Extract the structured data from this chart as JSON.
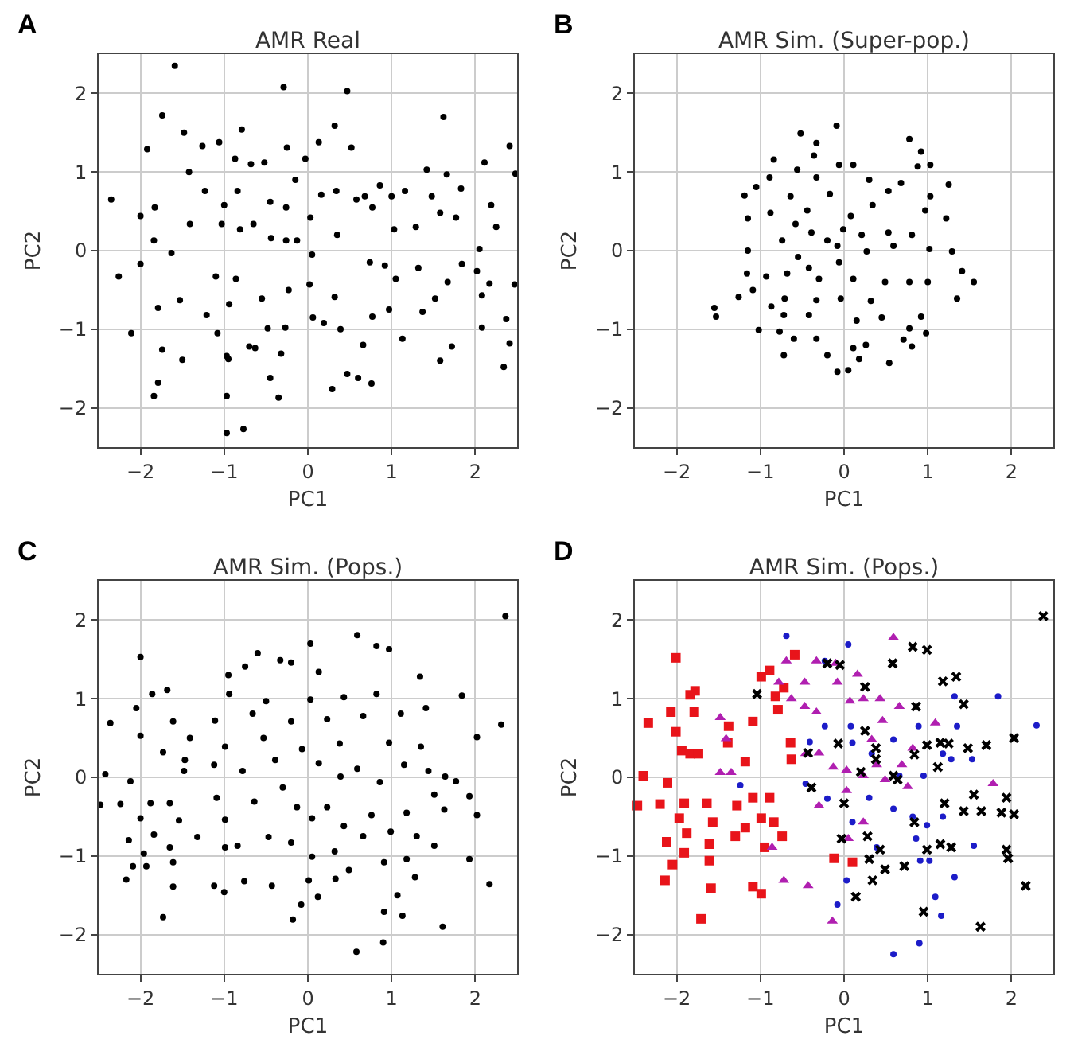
{
  "chart_data": [
    {
      "type": "scatter",
      "title": "AMR Real",
      "xlabel": "PC1",
      "ylabel": "PC2",
      "annotations": [
        "A"
      ],
      "xlim": [
        -2.5,
        2.5
      ],
      "ylim": [
        -2.5,
        2.5
      ],
      "xticks": [
        -2,
        -1,
        0,
        1,
        2
      ],
      "yticks": [
        -2,
        -1,
        0,
        1,
        2
      ],
      "grid": true,
      "marker": "circle",
      "series": [
        {
          "color": "#000000",
          "x": [
            -1.59,
            -0.29,
            0.47,
            -1.74,
            1.62,
            -2.35,
            -2.26,
            -2.11,
            -1.92,
            -1.48,
            -2.0,
            -2.0,
            -1.83,
            -1.84,
            -1.79,
            -1.74,
            -1.79,
            -1.84,
            -1.5,
            -1.63,
            -1.53,
            -1.41,
            -1.42,
            -1.26,
            -1.23,
            -1.21,
            -1.1,
            -1.06,
            -1.0,
            -1.03,
            -1.08,
            -0.97,
            -0.95,
            -0.97,
            -0.77,
            -0.97,
            -0.87,
            -0.84,
            -0.81,
            -0.86,
            -0.94,
            -0.79,
            -0.68,
            -0.65,
            -0.7,
            -0.63,
            -0.55,
            -0.52,
            -0.45,
            -0.44,
            -0.48,
            -0.45,
            -0.35,
            -0.32,
            -0.27,
            -0.26,
            -0.25,
            -0.26,
            -0.23,
            -0.15,
            -0.13,
            -0.03,
            0.03,
            0.05,
            0.02,
            0.06,
            0.13,
            0.16,
            0.19,
            0.29,
            0.32,
            0.34,
            0.35,
            0.32,
            0.39,
            0.52,
            0.47,
            0.6,
            0.66,
            0.58,
            0.68,
            0.74,
            0.77,
            0.77,
            0.76,
            0.86,
            0.92,
            0.97,
            1.0,
            1.03,
            1.05,
            1.13,
            1.16,
            1.29,
            1.32,
            1.37,
            1.42,
            1.48,
            1.52,
            1.58,
            1.58,
            1.66,
            1.67,
            1.72,
            1.77,
            1.83,
            1.84,
            2.02,
            2.05,
            2.08,
            2.08,
            2.11,
            2.19,
            2.25,
            2.17,
            2.34,
            2.37,
            2.41,
            2.41,
            2.48,
            2.47
          ],
          "values": [
            2.35,
            2.08,
            2.03,
            1.72,
            1.7,
            0.65,
            -0.33,
            -1.05,
            1.29,
            1.5,
            0.44,
            -0.17,
            0.55,
            0.13,
            -0.73,
            -1.26,
            -1.68,
            -1.85,
            -1.39,
            -0.03,
            -0.63,
            0.34,
            1.0,
            1.33,
            0.76,
            -0.82,
            -0.33,
            1.38,
            0.58,
            0.34,
            -1.05,
            -1.34,
            -1.38,
            -2.32,
            -2.27,
            -1.85,
            1.17,
            0.76,
            0.27,
            -0.36,
            -0.68,
            1.54,
            1.1,
            0.34,
            -1.22,
            -1.24,
            -0.61,
            1.12,
            0.62,
            0.16,
            -0.99,
            -1.62,
            -1.87,
            -1.31,
            -0.98,
            0.55,
            1.31,
            0.13,
            -0.5,
            0.9,
            0.13,
            1.17,
            0.42,
            -0.05,
            -0.43,
            -0.85,
            1.38,
            0.71,
            -0.92,
            -1.76,
            1.59,
            0.76,
            0.2,
            -0.59,
            -1.0,
            1.31,
            -1.57,
            -1.62,
            -1.2,
            0.65,
            0.69,
            -0.15,
            0.55,
            -0.84,
            -1.69,
            0.83,
            -0.19,
            -0.75,
            0.69,
            0.27,
            -0.36,
            -1.12,
            0.76,
            0.3,
            -0.22,
            -0.78,
            1.03,
            0.69,
            -0.61,
            -1.4,
            0.48,
            0.97,
            -0.4,
            -1.22,
            0.42,
            0.79,
            -0.17,
            -0.26,
            0.02,
            -0.57,
            -0.98,
            1.12,
            0.58,
            0.3,
            -0.42,
            -1.48,
            -0.87,
            -1.18,
            1.33,
            0.98,
            -0.43
          ]
        }
      ]
    },
    {
      "type": "scatter",
      "title": "AMR Sim. (Super-pop.)",
      "xlabel": "PC1",
      "ylabel": "PC2",
      "annotations": [
        "B"
      ],
      "xlim": [
        -2.5,
        2.5
      ],
      "ylim": [
        -2.5,
        2.5
      ],
      "xticks": [
        -2,
        -1,
        0,
        1,
        2
      ],
      "yticks": [
        -2,
        -1,
        0,
        1,
        2
      ],
      "grid": true,
      "marker": "circle",
      "series": [
        {
          "color": "#000000",
          "x": [
            -0.09,
            -0.52,
            -0.33,
            -0.36,
            0.78,
            0.92,
            -0.84,
            -0.56,
            -0.06,
            0.11,
            1.03,
            0.88,
            -1.05,
            -0.89,
            -1.19,
            1.25,
            0.68,
            -0.33,
            0.3,
            -0.17,
            0.53,
            -0.88,
            -1.15,
            -0.64,
            -0.44,
            0.08,
            0.34,
            1.03,
            1.22,
            0.97,
            -0.58,
            -0.74,
            -0.39,
            -0.2,
            -0.01,
            0.21,
            0.53,
            0.81,
            -1.15,
            -0.55,
            -0.08,
            0.27,
            0.59,
            1.02,
            1.29,
            1.41,
            1.55,
            -1.16,
            -0.93,
            -0.68,
            -0.42,
            -0.3,
            -0.06,
            0.11,
            0.49,
            0.78,
            1.0,
            -1.26,
            -1.09,
            -0.71,
            -0.33,
            -0.04,
            0.32,
            1.35,
            -1.55,
            -1.53,
            -0.87,
            -0.72,
            -0.42,
            0.15,
            0.45,
            0.92,
            -1.02,
            -0.77,
            -0.6,
            -0.33,
            0.78,
            0.98,
            -0.72,
            -0.2,
            0.11,
            0.26,
            -0.08,
            0.05,
            0.54,
            0.81,
            0.71,
            0.18
          ],
          "values": [
            1.59,
            1.49,
            1.37,
            1.21,
            1.42,
            1.26,
            1.16,
            1.03,
            1.09,
            1.09,
            1.09,
            1.07,
            0.81,
            0.93,
            0.7,
            0.84,
            0.86,
            0.93,
            0.9,
            0.72,
            0.76,
            0.48,
            0.41,
            0.69,
            0.51,
            0.44,
            0.58,
            0.69,
            0.41,
            0.51,
            0.34,
            0.13,
            0.23,
            0.13,
            0.27,
            0.2,
            0.23,
            0.2,
            0.0,
            -0.08,
            0.06,
            -0.01,
            0.06,
            0.02,
            -0.01,
            -0.26,
            -0.4,
            -0.29,
            -0.33,
            -0.29,
            -0.22,
            -0.36,
            -0.15,
            -0.36,
            -0.4,
            -0.4,
            -0.4,
            -0.59,
            -0.5,
            -0.61,
            -0.63,
            -0.61,
            -0.64,
            -0.61,
            -0.73,
            -0.84,
            -0.71,
            -0.82,
            -0.82,
            -0.89,
            -0.85,
            -0.84,
            -1.01,
            -1.03,
            -1.12,
            -1.12,
            -0.99,
            -1.05,
            -1.33,
            -1.33,
            -1.24,
            -1.2,
            -1.54,
            -1.52,
            -1.43,
            -1.22,
            -1.13,
            -1.38
          ]
        }
      ]
    },
    {
      "type": "scatter",
      "title": "AMR Sim. (Pops.)",
      "xlabel": "PC1",
      "ylabel": "PC2",
      "annotations": [
        "C"
      ],
      "xlim": [
        -2.5,
        2.5
      ],
      "ylim": [
        -2.5,
        2.5
      ],
      "xticks": [
        -2,
        -1,
        0,
        1,
        2
      ],
      "yticks": [
        -2,
        -1,
        0,
        1,
        2
      ],
      "grid": true,
      "marker": "circle",
      "series": [
        {
          "color": "#000000",
          "x": [
            2.36,
            0.59,
            0.03,
            0.97,
            -2.0,
            -0.6,
            0.82,
            -0.33,
            -0.95,
            -0.75,
            -0.2,
            0.13,
            1.34,
            -1.68,
            -1.86,
            -0.94,
            -0.5,
            0.03,
            0.43,
            0.82,
            1.84,
            -2.36,
            -2.05,
            -1.61,
            -1.11,
            -0.66,
            -0.2,
            0.23,
            0.66,
            1.11,
            1.41,
            2.31,
            -2.0,
            -1.41,
            -0.99,
            -0.53,
            -0.07,
            0.38,
            0.97,
            1.35,
            2.02,
            -1.73,
            -1.47,
            -1.12,
            -0.78,
            -0.39,
            0.13,
            0.59,
            1.15,
            1.64,
            -2.42,
            -2.12,
            -1.48,
            -0.3,
            0.39,
            0.86,
            1.44,
            1.77,
            -2.48,
            -2.24,
            -1.88,
            -1.65,
            -1.09,
            -0.64,
            -0.13,
            0.23,
            0.76,
            1.18,
            1.51,
            1.93,
            2.02,
            -2.0,
            -1.54,
            -0.99,
            0.05,
            0.43,
            0.99,
            1.63,
            -2.14,
            -1.84,
            -1.32,
            -0.84,
            -0.47,
            -0.2,
            0.66,
            1.3,
            -1.96,
            -1.65,
            -0.99,
            0.05,
            0.32,
            0.91,
            1.18,
            1.93,
            1.51,
            -2.09,
            -1.93,
            -1.61,
            -2.17,
            -1.61,
            -1.12,
            -1.0,
            -0.76,
            -0.43,
            0.01,
            0.12,
            0.33,
            0.49,
            1.28,
            1.07,
            2.17,
            -0.08,
            -0.18,
            0.91,
            1.13,
            1.61,
            0.9,
            0.58,
            -1.73
          ],
          "values": [
            2.05,
            1.81,
            1.7,
            1.63,
            1.53,
            1.58,
            1.67,
            1.49,
            1.3,
            1.41,
            1.46,
            1.34,
            1.28,
            1.11,
            1.06,
            1.06,
            0.97,
            0.99,
            1.02,
            1.06,
            1.04,
            0.69,
            0.88,
            0.71,
            0.72,
            0.81,
            0.71,
            0.74,
            0.78,
            0.81,
            0.88,
            0.67,
            0.53,
            0.5,
            0.39,
            0.5,
            0.36,
            0.43,
            0.44,
            0.39,
            0.51,
            0.32,
            0.22,
            0.16,
            0.08,
            0.22,
            0.18,
            0.11,
            0.16,
            0.01,
            0.04,
            -0.05,
            0.08,
            -0.13,
            0.01,
            -0.06,
            0.08,
            -0.05,
            -0.35,
            -0.34,
            -0.33,
            -0.33,
            -0.26,
            -0.31,
            -0.38,
            -0.38,
            -0.48,
            -0.45,
            -0.22,
            -0.24,
            -0.48,
            -0.52,
            -0.55,
            -0.54,
            -0.52,
            -0.62,
            -0.69,
            -0.41,
            -0.8,
            -0.73,
            -0.76,
            -0.87,
            -0.76,
            -0.83,
            -0.75,
            -0.75,
            -0.97,
            -0.89,
            -0.89,
            -1.01,
            -0.94,
            -1.08,
            -1.04,
            -1.04,
            -0.87,
            -1.13,
            -1.13,
            -1.08,
            -1.3,
            -1.39,
            -1.38,
            -1.46,
            -1.32,
            -1.38,
            -1.31,
            -1.52,
            -1.29,
            -1.18,
            -1.27,
            -1.5,
            -1.36,
            -1.62,
            -1.81,
            -1.71,
            -1.76,
            -1.9,
            -2.1,
            -2.22,
            -1.78
          ]
        }
      ]
    },
    {
      "type": "scatter",
      "title": "AMR Sim. (Pops.)",
      "xlabel": "PC1",
      "ylabel": "PC2",
      "annotations": [
        "D"
      ],
      "xlim": [
        -2.5,
        2.5
      ],
      "ylim": [
        -2.5,
        2.5
      ],
      "xticks": [
        -2,
        -1,
        0,
        1,
        2
      ],
      "yticks": [
        -2,
        -1,
        0,
        1,
        2
      ],
      "grid": true,
      "series": [
        {
          "color": "#e8141a",
          "marker": "square",
          "x": [
            -2.01,
            -2.47,
            -2.34,
            -2.4,
            -2.2,
            -2.12,
            -2.14,
            -2.05,
            -2.11,
            -1.97,
            -2.07,
            -2.01,
            -1.94,
            -1.91,
            -1.84,
            -1.84,
            -1.91,
            -1.88,
            -1.78,
            -1.79,
            -1.74,
            -1.71,
            -1.64,
            -1.61,
            -1.61,
            -1.59,
            -1.57,
            -1.39,
            -1.38,
            -1.3,
            -1.28,
            -1.18,
            -1.18,
            -1.09,
            -1.09,
            -1.09,
            -0.99,
            -0.99,
            -0.89,
            -0.99,
            -0.95,
            -0.89,
            -0.84,
            -0.82,
            -0.79,
            -0.64,
            -0.59,
            -0.74,
            -0.12,
            0.1,
            -0.72,
            -0.63
          ],
          "values": [
            1.52,
            -0.36,
            0.69,
            0.02,
            -0.34,
            -0.82,
            -1.31,
            -1.11,
            -0.07,
            -0.52,
            0.83,
            0.58,
            0.34,
            -0.96,
            1.05,
            0.3,
            -0.33,
            -0.71,
            1.1,
            0.83,
            0.3,
            -1.8,
            -0.33,
            -0.85,
            -1.06,
            -1.41,
            -0.57,
            0.44,
            0.65,
            -0.75,
            -0.36,
            0.2,
            -0.64,
            -0.26,
            0.71,
            -1.39,
            -0.52,
            1.28,
            1.36,
            -1.48,
            -0.89,
            -0.26,
            -0.57,
            1.03,
            0.86,
            0.44,
            1.56,
            -0.75,
            -1.03,
            -1.08,
            1.14,
            0.23
          ]
        },
        {
          "color": "#b01fb0",
          "marker": "triangle",
          "x": [
            -0.69,
            -0.33,
            -0.47,
            -0.1,
            0.16,
            -0.08,
            0.59,
            -0.78,
            -1.48,
            -1.41,
            -1.48,
            -1.35,
            -0.63,
            -0.47,
            -0.33,
            0.07,
            0.23,
            0.43,
            0.66,
            -0.3,
            -0.13,
            0.03,
            0.33,
            0.46,
            0.39,
            0.69,
            1.09,
            0.03,
            0.23,
            0.49,
            0.76,
            -0.3,
            0.05,
            0.23,
            -0.86,
            -0.72,
            -0.43,
            -0.14,
            1.78,
            0.82,
            -0.46
          ],
          "values": [
            1.48,
            1.48,
            1.21,
            1.45,
            1.31,
            1.21,
            1.78,
            1.21,
            0.76,
            0.49,
            0.06,
            0.06,
            1.0,
            0.9,
            0.83,
            0.97,
            1.0,
            1.0,
            0.9,
            0.31,
            0.13,
            0.09,
            0.48,
            0.72,
            0.16,
            0.16,
            0.69,
            -0.17,
            0.02,
            -0.03,
            -0.12,
            -0.36,
            -0.78,
            -0.57,
            -0.89,
            -1.31,
            -1.38,
            -1.83,
            -0.08,
            0.37,
            0.3
          ]
        },
        {
          "color": "#1c1cc8",
          "marker": "circle",
          "x": [
            -0.69,
            0.05,
            -0.23,
            0.08,
            -0.23,
            -0.41,
            -1.24,
            -0.46,
            -0.2,
            0.1,
            0.3,
            0.33,
            0.59,
            0.66,
            0.82,
            0.89,
            0.95,
            1.18,
            1.32,
            1.28,
            1.35,
            1.18,
            0.99,
            0.86,
            0.91,
            1.02,
            1.32,
            1.55,
            1.84,
            2.3,
            0.03,
            -0.08,
            1.09,
            1.16,
            0.9,
            0.59,
            0.39,
            0.59,
            1.53,
            0.1
          ],
          "values": [
            1.8,
            1.69,
            1.48,
            0.65,
            0.65,
            0.45,
            -0.1,
            -0.08,
            -0.27,
            -0.57,
            -0.26,
            0.3,
            0.48,
            0.02,
            -0.5,
            0.65,
            0.02,
            0.3,
            1.03,
            0.23,
            0.65,
            -0.5,
            -0.61,
            -0.78,
            -1.06,
            -1.06,
            -1.27,
            -0.87,
            1.03,
            0.66,
            -1.31,
            -1.62,
            -1.52,
            -1.76,
            -2.11,
            -2.25,
            -0.89,
            -0.4,
            0.23,
            0.44
          ]
        },
        {
          "color": "#000000",
          "marker": "cross",
          "x": [
            2.38,
            0.82,
            0.99,
            -0.2,
            -0.05,
            0.58,
            0.25,
            1.18,
            1.34,
            1.43,
            -1.04,
            -0.43,
            -0.07,
            0.25,
            0.38,
            0.86,
            0.99,
            1.15,
            1.25,
            1.48,
            1.7,
            2.03,
            0.2,
            0.38,
            0.84,
            0.59,
            1.12,
            0.0,
            -0.39,
            1.2,
            1.43,
            1.55,
            1.64,
            1.88,
            1.94,
            2.03,
            0.84,
            0.28,
            0.43,
            -0.03,
            0.3,
            0.49,
            0.72,
            0.99,
            1.15,
            1.28,
            1.94,
            1.96,
            0.34,
            0.14,
            0.95,
            2.17,
            1.63,
            0.64
          ],
          "values": [
            2.05,
            1.66,
            1.62,
            1.45,
            1.43,
            1.45,
            1.15,
            1.22,
            1.28,
            0.93,
            1.06,
            0.31,
            0.43,
            0.59,
            0.37,
            0.9,
            0.41,
            0.44,
            0.43,
            0.37,
            0.41,
            0.5,
            0.07,
            0.23,
            0.29,
            0.02,
            0.13,
            -0.33,
            -0.13,
            -0.33,
            -0.43,
            -0.22,
            -0.43,
            -0.45,
            -0.26,
            -0.47,
            -0.57,
            -0.75,
            -0.92,
            -0.78,
            -1.04,
            -1.17,
            -1.13,
            -0.92,
            -0.85,
            -0.89,
            -0.92,
            -1.03,
            -1.31,
            -1.52,
            -1.71,
            -1.38,
            -1.9,
            -0.03
          ]
        }
      ]
    }
  ]
}
